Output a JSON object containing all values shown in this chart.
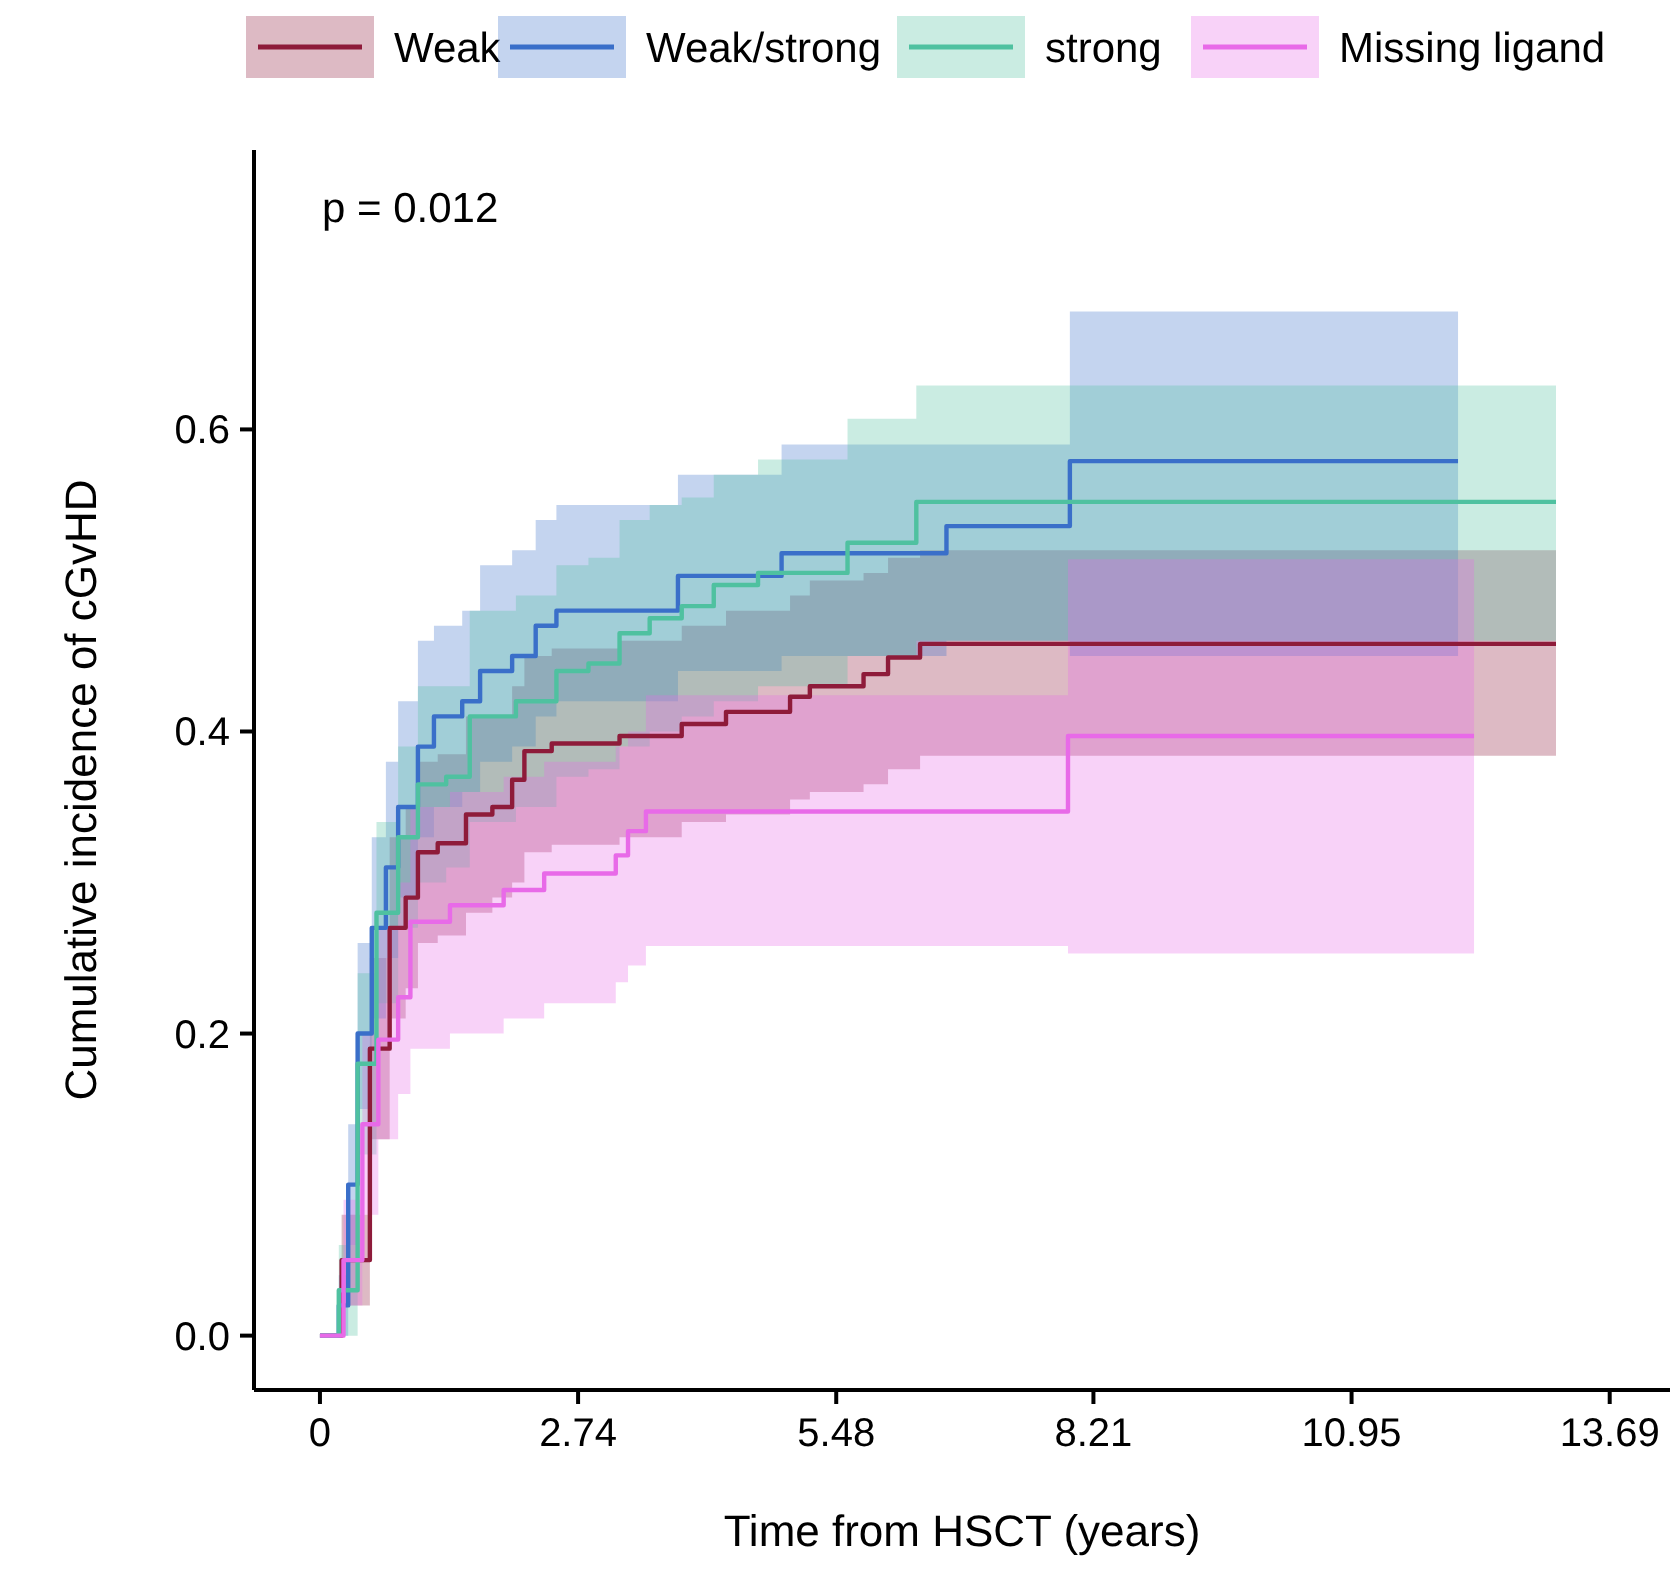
{
  "chart_data": {
    "type": "step",
    "xlabel": "Time from HSCT (years)",
    "ylabel": "Cumulative incidence of cGvHD",
    "annotations": [
      "p = 0.012"
    ],
    "xlim": [
      -0.7,
      14.33
    ],
    "xticks": [
      0,
      2.74,
      5.48,
      8.21,
      10.95,
      13.69
    ],
    "ylim": [
      -0.036,
      0.785
    ],
    "yticks": [
      {
        "value": 0,
        "label": "0.0"
      },
      {
        "value": 0.2,
        "label": "0.2"
      },
      {
        "value": 0.4,
        "label": "0.4"
      },
      {
        "value": 0.6,
        "label": "0.6"
      }
    ],
    "grid": false,
    "legend": "top",
    "marker": "none",
    "line_style": "solid",
    "series": [
      {
        "name": "Weak",
        "color": "#8e1b3a",
        "x": [
          0,
          0.23,
          0.53,
          0.74,
          0.91,
          1.04,
          1.25,
          1.55,
          1.83,
          2.04,
          2.17,
          2.46,
          3.18,
          3.84,
          4.31,
          4.99,
          5.2,
          5.77,
          6.03,
          6.37,
          13.12
        ],
        "values": [
          0,
          0.05,
          0.19,
          0.27,
          0.29,
          0.32,
          0.326,
          0.345,
          0.35,
          0.368,
          0.387,
          0.392,
          0.397,
          0.405,
          0.413,
          0.423,
          0.43,
          0.438,
          0.449,
          0.458,
          0.458
        ],
        "lower": [
          0,
          0.02,
          0.13,
          0.21,
          0.23,
          0.26,
          0.265,
          0.28,
          0.29,
          0.3,
          0.32,
          0.325,
          0.33,
          0.34,
          0.345,
          0.355,
          0.36,
          0.365,
          0.375,
          0.384,
          0.384
        ],
        "upper": [
          0,
          0.08,
          0.25,
          0.33,
          0.35,
          0.38,
          0.385,
          0.41,
          0.41,
          0.43,
          0.45,
          0.455,
          0.46,
          0.47,
          0.48,
          0.49,
          0.5,
          0.505,
          0.515,
          0.52,
          0.52
        ]
      },
      {
        "name": "Weak/strong",
        "color": "#3a6fc9",
        "x": [
          0,
          0.2,
          0.3,
          0.4,
          0.55,
          0.7,
          0.83,
          1.04,
          1.21,
          1.51,
          1.7,
          2.04,
          2.29,
          2.51,
          3.8,
          4.9,
          6.65,
          7.96,
          12.08
        ],
        "values": [
          0,
          0.02,
          0.1,
          0.2,
          0.27,
          0.31,
          0.35,
          0.39,
          0.41,
          0.42,
          0.44,
          0.45,
          0.47,
          0.48,
          0.503,
          0.518,
          0.536,
          0.579,
          0.579
        ],
        "lower": [
          0,
          0,
          0.06,
          0.15,
          0.21,
          0.25,
          0.29,
          0.33,
          0.35,
          0.36,
          0.38,
          0.39,
          0.41,
          0.42,
          0.44,
          0.45,
          0.46,
          0.45,
          0.45
        ],
        "upper": [
          0,
          0.04,
          0.14,
          0.26,
          0.33,
          0.38,
          0.42,
          0.46,
          0.47,
          0.48,
          0.51,
          0.52,
          0.54,
          0.55,
          0.57,
          0.59,
          0.59,
          0.678,
          0.678
        ]
      },
      {
        "name": "strong",
        "color": "#4fc1a0",
        "x": [
          0,
          0.2,
          0.4,
          0.6,
          0.83,
          1.04,
          1.34,
          1.59,
          2.08,
          2.51,
          2.85,
          3.18,
          3.5,
          3.84,
          4.18,
          4.65,
          5.6,
          6.33,
          13.12
        ],
        "values": [
          0,
          0.03,
          0.18,
          0.28,
          0.33,
          0.365,
          0.37,
          0.41,
          0.42,
          0.44,
          0.445,
          0.465,
          0.475,
          0.483,
          0.497,
          0.505,
          0.525,
          0.552,
          0.552
        ],
        "lower": [
          0,
          0,
          0.12,
          0.22,
          0.27,
          0.3,
          0.31,
          0.34,
          0.35,
          0.37,
          0.375,
          0.39,
          0.4,
          0.41,
          0.42,
          0.43,
          0.45,
          0.46,
          0.46
        ],
        "upper": [
          0,
          0.06,
          0.24,
          0.34,
          0.39,
          0.43,
          0.43,
          0.48,
          0.49,
          0.51,
          0.515,
          0.54,
          0.55,
          0.555,
          0.57,
          0.58,
          0.607,
          0.629,
          0.629
        ]
      },
      {
        "name": "Missing ligand",
        "color": "#e86ae8",
        "x": [
          0,
          0.25,
          0.45,
          0.62,
          0.83,
          0.96,
          1.38,
          1.95,
          2.38,
          3.14,
          3.27,
          3.46,
          7.94,
          12.25
        ],
        "values": [
          0,
          0.05,
          0.14,
          0.196,
          0.224,
          0.274,
          0.285,
          0.295,
          0.306,
          0.318,
          0.334,
          0.347,
          0.397,
          0.397
        ],
        "lower": [
          0,
          0.02,
          0.08,
          0.13,
          0.16,
          0.19,
          0.2,
          0.21,
          0.22,
          0.234,
          0.245,
          0.258,
          0.253,
          0.253
        ],
        "upper": [
          0,
          0.09,
          0.2,
          0.27,
          0.3,
          0.35,
          0.36,
          0.37,
          0.38,
          0.39,
          0.4,
          0.424,
          0.514,
          0.514
        ]
      }
    ]
  }
}
